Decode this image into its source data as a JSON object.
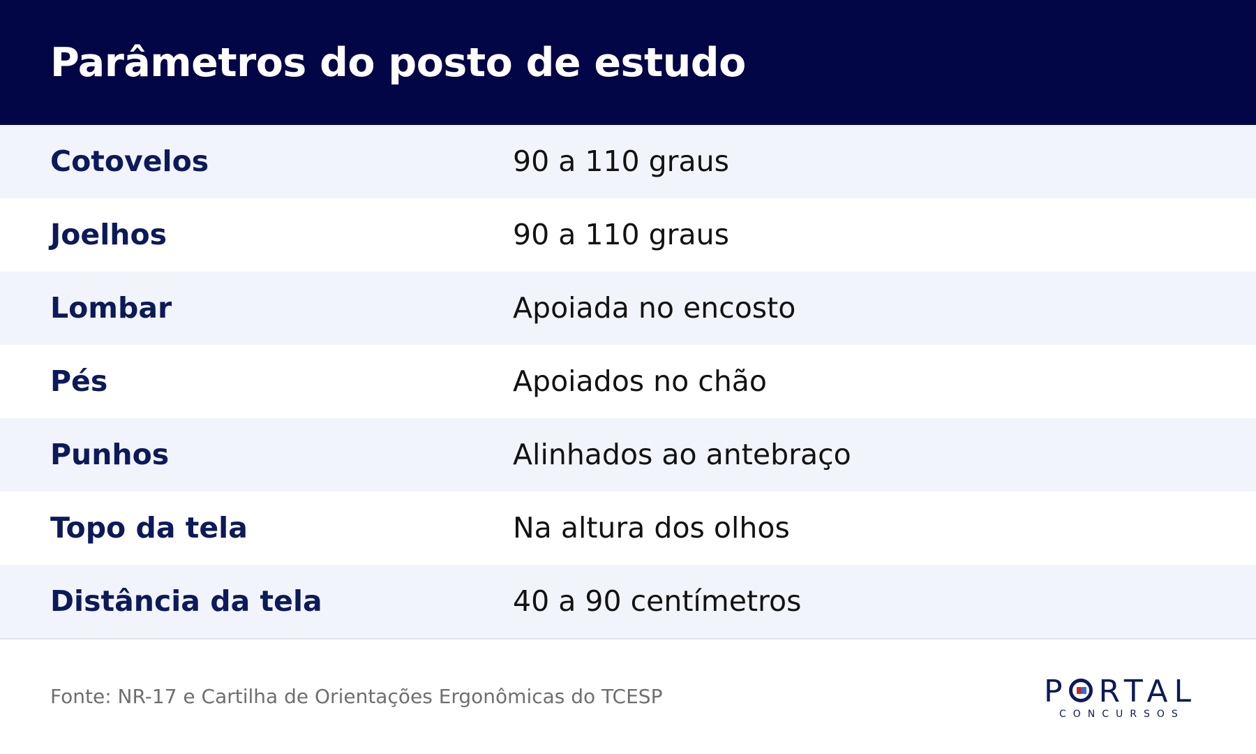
{
  "header": {
    "title": "Parâmetros do posto de estudo"
  },
  "table": {
    "rows": [
      {
        "label": "Cotovelos",
        "value": "90 a 110 graus"
      },
      {
        "label": "Joelhos",
        "value": "90 a 110 graus"
      },
      {
        "label": "Lombar",
        "value": "Apoiada no encosto"
      },
      {
        "label": "Pés",
        "value": "Apoiados no chão"
      },
      {
        "label": "Punhos",
        "value": "Alinhados ao antebraço"
      },
      {
        "label": "Topo da tela",
        "value": "Na altura dos olhos"
      },
      {
        "label": "Distância da tela",
        "value": "40 a 90 centímetros"
      }
    ]
  },
  "footer": {
    "source": "Fonte: NR-17 e Cartilha de Orientações Ergonômicas do TCESP",
    "logo": {
      "word_start": "P",
      "word_end": "RTAL",
      "subtitle": "CONCURSOS"
    }
  },
  "colors": {
    "header_bg": "#030646",
    "label_text": "#0c1a5a",
    "row_alt_bg": "#f2f4fb",
    "logo_red": "#c8262f",
    "logo_blue": "#2f6fd6"
  }
}
